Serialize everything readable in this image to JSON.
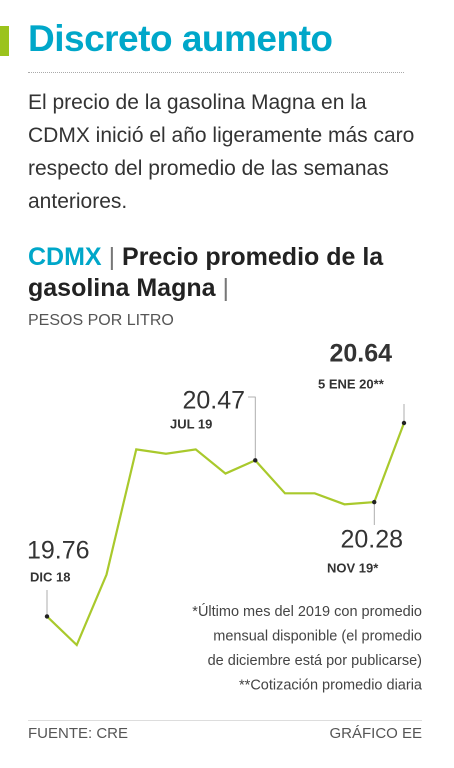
{
  "header": {
    "title": "Discreto aumento",
    "subtitle": "El precio de la gasolina Magna en la CDMX inició el año ligeramente más caro respecto del promedio de las semanas anteriores."
  },
  "chart_data": {
    "type": "line",
    "label": "CDMX",
    "title": "Precio promedio de la gasolina Magna",
    "units": "PESOS POR LITRO",
    "categories": [
      "DIC 18",
      null,
      null,
      null,
      null,
      null,
      null,
      "JUL 19",
      null,
      null,
      null,
      "NOV 19*",
      "5 ENE 20**"
    ],
    "values": [
      19.76,
      19.63,
      19.95,
      20.52,
      20.5,
      20.52,
      20.41,
      20.47,
      20.32,
      20.32,
      20.27,
      20.28,
      20.64
    ],
    "color": "#a9c92c",
    "notes": [
      "*Último mes del 2019 con promedio",
      "mensual disponible (el promedio",
      "de diciembre está por publicarse)",
      "**Cotización promedio diaria"
    ]
  },
  "footer": {
    "source": "FUENTE: CRE",
    "credit": "GRÁFICO EE"
  }
}
